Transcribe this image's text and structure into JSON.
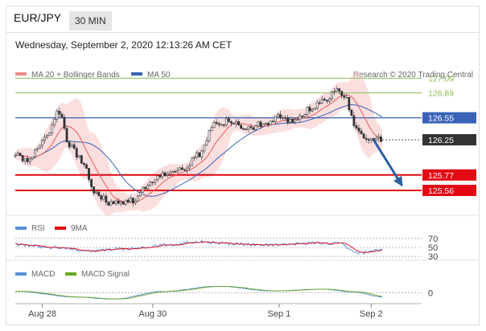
{
  "header": {
    "symbol": "EUR/JPY",
    "timeframe": "30 MIN",
    "timestamp": "Wednesday, September 2, 2020 12:13:26 AM CET"
  },
  "colors": {
    "ma20": "#e85a5a",
    "ma50": "#3a63b8",
    "bollinger_fill": "#f9c9c9",
    "resistance": "#8cbf55",
    "support": "#e30613",
    "current_price": "#333333",
    "rsi": "#5b8fd6",
    "rsi_9ma": "#e30613",
    "macd": "#5b8fd6",
    "macd_signal": "#66aa22",
    "arrow": "#2c5fa0"
  },
  "chart_data": [
    {
      "type": "candlestick",
      "panel": "price",
      "legend": [
        {
          "label": "MA 20 + Bollinger Bands",
          "color": "#f08a8a"
        },
        {
          "label": "MA 50",
          "color": "#3a63b8"
        }
      ],
      "copyright": "Research © 2020 Trading Central",
      "price_range": [
        125.22,
        127.28
      ],
      "levels": [
        {
          "value": 127.09,
          "label": "127.09",
          "kind": "resistance"
        },
        {
          "value": 126.89,
          "label": "126.89",
          "kind": "resistance"
        },
        {
          "value": 126.55,
          "label": "126.55",
          "kind": "pivot"
        },
        {
          "value": 126.25,
          "label": "126.25",
          "kind": "current"
        },
        {
          "value": 125.77,
          "label": "125.77",
          "kind": "support"
        },
        {
          "value": 125.56,
          "label": "125.56",
          "kind": "support"
        }
      ],
      "path_anchors": [
        {
          "x": 0,
          "price": 126.05
        },
        {
          "x": 10,
          "price": 125.97
        },
        {
          "x": 25,
          "price": 126.3
        },
        {
          "x": 35,
          "price": 126.62
        },
        {
          "x": 45,
          "price": 126.15
        },
        {
          "x": 55,
          "price": 125.95
        },
        {
          "x": 65,
          "price": 125.52
        },
        {
          "x": 80,
          "price": 125.37
        },
        {
          "x": 95,
          "price": 125.42
        },
        {
          "x": 108,
          "price": 125.64
        },
        {
          "x": 120,
          "price": 125.78
        },
        {
          "x": 135,
          "price": 125.85
        },
        {
          "x": 150,
          "price": 126.05
        },
        {
          "x": 162,
          "price": 126.45
        },
        {
          "x": 175,
          "price": 126.5
        },
        {
          "x": 190,
          "price": 126.42
        },
        {
          "x": 205,
          "price": 126.48
        },
        {
          "x": 215,
          "price": 126.58
        },
        {
          "x": 225,
          "price": 126.52
        },
        {
          "x": 240,
          "price": 126.66
        },
        {
          "x": 253,
          "price": 126.79
        },
        {
          "x": 262,
          "price": 126.95
        },
        {
          "x": 268,
          "price": 126.85
        },
        {
          "x": 278,
          "price": 126.4
        },
        {
          "x": 285,
          "price": 126.23
        },
        {
          "x": 299,
          "price": 126.25
        }
      ],
      "bars": 300,
      "ma20_offset": 20,
      "ma50_offset": 50,
      "x_axis": {
        "range": [
          0,
          299
        ],
        "ticks": [
          {
            "label": "Aug 28",
            "x": 22
          },
          {
            "label": "Aug 30",
            "x": 112
          },
          {
            "label": "Sep 1",
            "x": 215
          },
          {
            "label": "Sep 2",
            "x": 290
          }
        ]
      },
      "projection_arrow": {
        "from": {
          "x": 292,
          "price": 126.25
        },
        "to": {
          "x": 315,
          "price": 125.63
        }
      }
    },
    {
      "type": "line",
      "panel": "rsi",
      "legend": [
        {
          "label": "RSI",
          "color": "#5b8fd6"
        },
        {
          "label": "9MA",
          "color": "#e30613"
        }
      ],
      "y_range": [
        25,
        75
      ],
      "y_ticks": [
        70,
        50,
        30
      ],
      "path_anchors": [
        {
          "x": 0,
          "value": 56
        },
        {
          "x": 30,
          "value": 50
        },
        {
          "x": 60,
          "value": 43
        },
        {
          "x": 90,
          "value": 47
        },
        {
          "x": 120,
          "value": 55
        },
        {
          "x": 150,
          "value": 63
        },
        {
          "x": 175,
          "value": 58
        },
        {
          "x": 210,
          "value": 55
        },
        {
          "x": 240,
          "value": 60
        },
        {
          "x": 262,
          "value": 59
        },
        {
          "x": 280,
          "value": 38
        },
        {
          "x": 299,
          "value": 45
        }
      ]
    },
    {
      "type": "line",
      "panel": "macd",
      "legend": [
        {
          "label": "MACD",
          "color": "#5b8fd6"
        },
        {
          "label": "MACD Signal",
          "color": "#66aa22"
        }
      ],
      "y_range": [
        -0.32,
        0.42
      ],
      "y_ticks": [
        0
      ],
      "y_tick_labels": [
        "0"
      ],
      "path_anchors": [
        {
          "x": 0,
          "value": 0.05
        },
        {
          "x": 50,
          "value": -0.15
        },
        {
          "x": 80,
          "value": -0.22
        },
        {
          "x": 120,
          "value": 0.04
        },
        {
          "x": 165,
          "value": 0.22
        },
        {
          "x": 210,
          "value": 0.06
        },
        {
          "x": 250,
          "value": 0.12
        },
        {
          "x": 275,
          "value": 0.03
        },
        {
          "x": 299,
          "value": -0.14
        }
      ]
    }
  ]
}
